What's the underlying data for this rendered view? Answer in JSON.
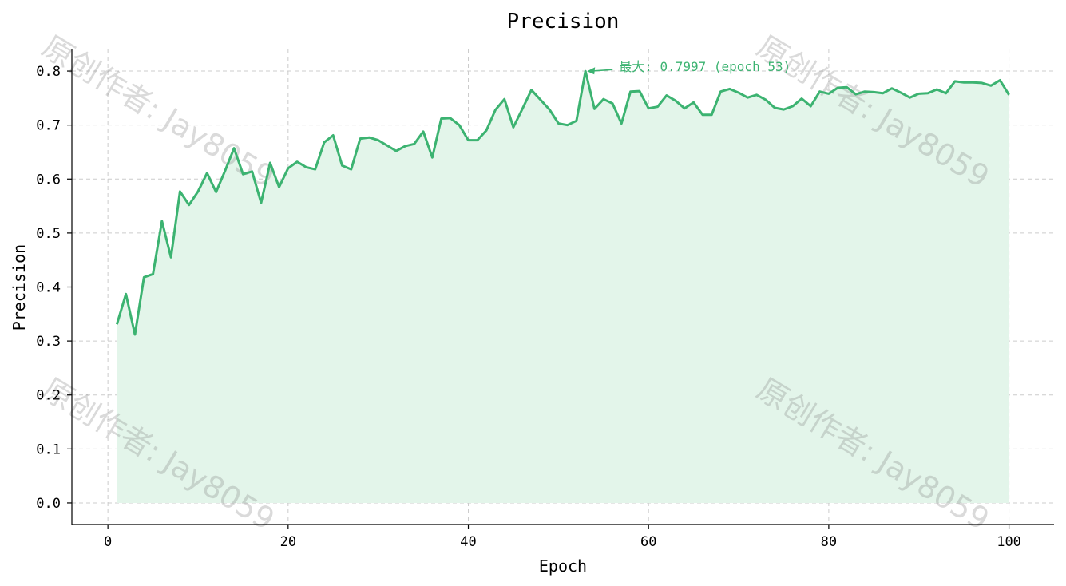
{
  "chart_data": {
    "type": "area",
    "title": "Precision",
    "xlabel": "Epoch",
    "ylabel": "Precision",
    "xlim": [
      -4,
      105
    ],
    "ylim": [
      -0.04,
      0.84
    ],
    "xticks": [
      0,
      20,
      40,
      60,
      80,
      100
    ],
    "yticks": [
      0.0,
      0.1,
      0.2,
      0.3,
      0.4,
      0.5,
      0.6,
      0.7,
      0.8
    ],
    "grid": true,
    "color": "#3cb371",
    "fill_color": "#e3f5ea",
    "x": [
      1,
      2,
      3,
      4,
      5,
      6,
      7,
      8,
      9,
      10,
      11,
      12,
      13,
      14,
      15,
      16,
      17,
      18,
      19,
      20,
      21,
      22,
      23,
      24,
      25,
      26,
      27,
      28,
      29,
      30,
      31,
      32,
      33,
      34,
      35,
      36,
      37,
      38,
      39,
      40,
      41,
      42,
      43,
      44,
      45,
      46,
      47,
      48,
      49,
      50,
      51,
      52,
      53,
      54,
      55,
      56,
      57,
      58,
      59,
      60,
      61,
      62,
      63,
      64,
      65,
      66,
      67,
      68,
      69,
      70,
      71,
      72,
      73,
      74,
      75,
      76,
      77,
      78,
      79,
      80,
      81,
      82,
      83,
      84,
      85,
      86,
      87,
      88,
      89,
      90,
      91,
      92,
      93,
      94,
      95,
      96,
      97,
      98,
      99,
      100
    ],
    "values": [
      0.331,
      0.387,
      0.312,
      0.418,
      0.424,
      0.522,
      0.455,
      0.577,
      0.552,
      0.577,
      0.611,
      0.576,
      0.615,
      0.657,
      0.609,
      0.614,
      0.556,
      0.63,
      0.585,
      0.62,
      0.632,
      0.622,
      0.618,
      0.668,
      0.681,
      0.625,
      0.618,
      0.675,
      0.677,
      0.672,
      0.662,
      0.652,
      0.661,
      0.665,
      0.688,
      0.64,
      0.712,
      0.713,
      0.7,
      0.672,
      0.672,
      0.69,
      0.728,
      0.748,
      0.696,
      0.73,
      0.765,
      0.747,
      0.729,
      0.703,
      0.7,
      0.708,
      0.7997,
      0.73,
      0.748,
      0.74,
      0.703,
      0.762,
      0.763,
      0.731,
      0.734,
      0.755,
      0.745,
      0.731,
      0.742,
      0.719,
      0.719,
      0.762,
      0.767,
      0.76,
      0.751,
      0.756,
      0.747,
      0.732,
      0.729,
      0.735,
      0.749,
      0.735,
      0.762,
      0.758,
      0.769,
      0.77,
      0.757,
      0.762,
      0.761,
      0.759,
      0.768,
      0.76,
      0.751,
      0.758,
      0.759,
      0.766,
      0.759,
      0.781,
      0.779,
      0.779,
      0.778,
      0.773,
      0.783,
      0.756
    ],
    "annotations": [
      {
        "text": "最大: 0.7997 (epoch 53)",
        "x": 53,
        "y": 0.7997
      }
    ]
  },
  "watermark": {
    "text": "原创作者: Jay8059",
    "color": "#7a7a7a"
  }
}
